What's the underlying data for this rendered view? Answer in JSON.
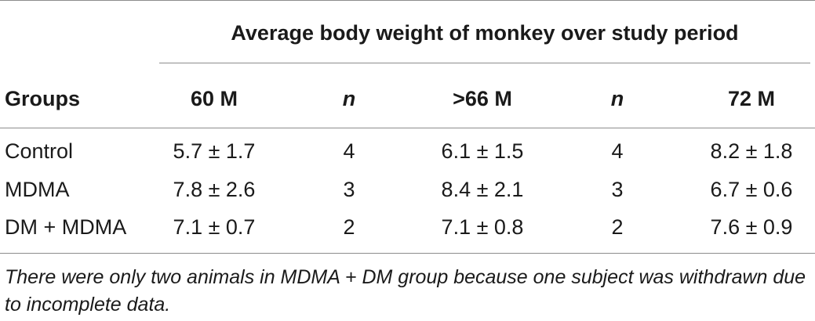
{
  "table": {
    "super_header": "Average body weight of monkey over study period",
    "columns": [
      "Groups",
      "60 M",
      "n",
      ">66 M",
      "n",
      "72 M"
    ],
    "rows": [
      [
        "Control",
        "5.7 ± 1.7",
        "4",
        "6.1 ± 1.5",
        "4",
        "8.2 ± 1.8"
      ],
      [
        "MDMA",
        "7.8 ± 2.6",
        "3",
        "8.4 ± 2.1",
        "3",
        "6.7 ± 0.6"
      ],
      [
        "DM + MDMA",
        "7.1 ± 0.7",
        "2",
        "7.1 ± 0.8",
        "2",
        "7.6 ± 0.9"
      ]
    ],
    "footnote": "There were only two animals in MDMA + DM group because one subject was withdrawn due to incomplete data."
  }
}
